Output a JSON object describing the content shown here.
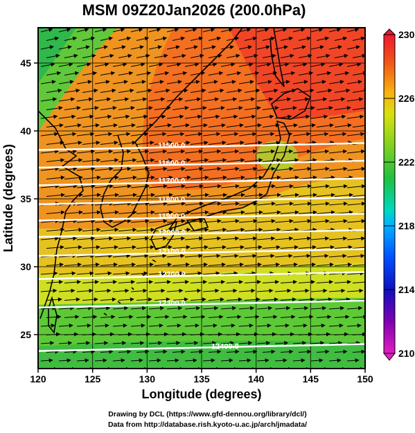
{
  "title": "MSM 09Z20Jan2026 (200.0hPa)",
  "chart_data": {
    "type": "heatmap",
    "xlabel": "Longitude (degrees)",
    "ylabel": "Latitude  (degrees)",
    "xlim": [
      120,
      150
    ],
    "ylim": [
      22.5,
      47.6
    ],
    "x_ticks": [
      "120",
      "125",
      "130",
      "135",
      "140",
      "145",
      "150"
    ],
    "y_ticks": [
      "25",
      "30",
      "35",
      "40",
      "45"
    ],
    "colorbar": {
      "range": [
        210,
        230
      ],
      "ticks": [
        "230",
        "226",
        "222",
        "218",
        "214",
        "210"
      ]
    },
    "contours": [
      {
        "label": "11500.0",
        "lat": 38.8
      },
      {
        "label": "11600.0",
        "lat": 37.5
      },
      {
        "label": "11700.0",
        "lat": 36.2
      },
      {
        "label": "11800.0",
        "lat": 34.8
      },
      {
        "label": "11900.0",
        "lat": 33.6
      },
      {
        "label": "12000.0",
        "lat": 32.4
      },
      {
        "label": "12100.0",
        "lat": 31.0
      },
      {
        "label": "12200.0",
        "lat": 29.3
      },
      {
        "label": "12300.0",
        "lat": 27.2
      },
      {
        "label": "12400.0",
        "lat": 24.0
      }
    ]
  },
  "credits": {
    "line1": "Drawing by DCL (https://www.gfd-dennou.org/library/dcl/)",
    "line2": "Data from http://database.rish.kyoto-u.ac.jp/arch/jmadata/"
  }
}
